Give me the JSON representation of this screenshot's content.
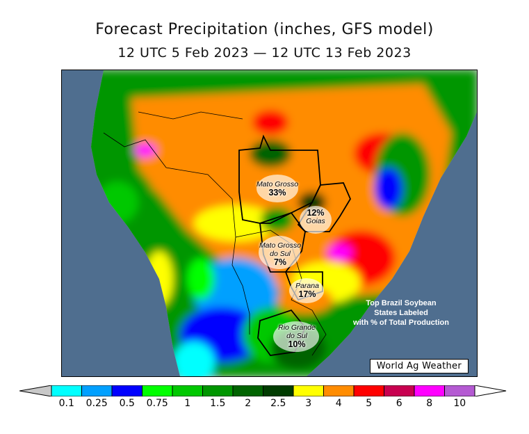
{
  "title": "Forecast Precipitation (inches, GFS model)",
  "subtitle": "12 UTC 5 Feb 2023 — 12 UTC 13 Feb 2023",
  "credit": "World Ag Weather",
  "note_lines": [
    "Top Brazil Soybean",
    "States Labeled",
    "with % of Total Production"
  ],
  "states": [
    {
      "name": "Mato Grosso",
      "pct": "33%"
    },
    {
      "name": "Goias",
      "pct": "12%"
    },
    {
      "name": "Mato Grosso do Sul",
      "name_lines": [
        "Mato Grosso",
        "do Sul"
      ],
      "pct": "7%"
    },
    {
      "name": "Parana",
      "pct": "17%"
    },
    {
      "name": "Rio Grande do Sul",
      "name_lines": [
        "Rio Grande",
        "do Sul"
      ],
      "pct": "10%"
    }
  ],
  "legend": {
    "tick_labels": [
      "0.1",
      "0.25",
      "0.5",
      "0.75",
      "1",
      "1.5",
      "2",
      "2.5",
      "3",
      "4",
      "5",
      "6",
      "8",
      "10"
    ],
    "colors": [
      "#00ffff",
      "#00a0ff",
      "#0000ff",
      "#00ff00",
      "#00c800",
      "#009600",
      "#006400",
      "#003c00",
      "#ffff00",
      "#ff8c00",
      "#ff0000",
      "#c80050",
      "#ff00ff",
      "#b45ad2"
    ],
    "under_color": "#c8c8c8",
    "over_color": "#ffffff"
  },
  "colors": {
    "ocean": "#4f6e8f",
    "land_gray": "#c8c8c8",
    "border": "#000000"
  }
}
